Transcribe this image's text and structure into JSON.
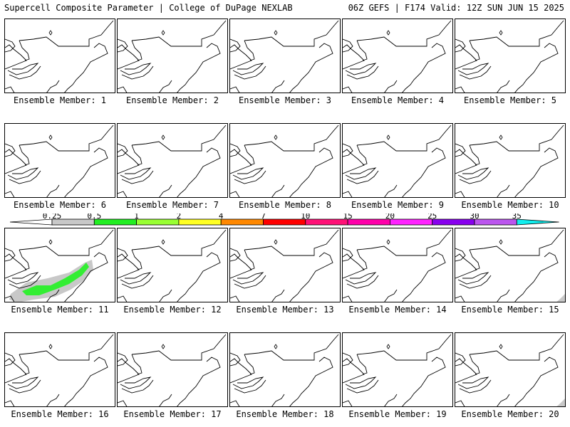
{
  "header": {
    "left": "Supercell Composite Parameter | College of DuPage NEXLAB",
    "right": "06Z GEFS | F174 Valid: 12Z SUN JUN 15 2025"
  },
  "members": [
    {
      "label": "Ensemble Member: 1"
    },
    {
      "label": "Ensemble Member: 2"
    },
    {
      "label": "Ensemble Member: 3"
    },
    {
      "label": "Ensemble Member: 4"
    },
    {
      "label": "Ensemble Member: 5"
    },
    {
      "label": "Ensemble Member: 6"
    },
    {
      "label": "Ensemble Member: 7"
    },
    {
      "label": "Ensemble Member: 8"
    },
    {
      "label": "Ensemble Member: 9"
    },
    {
      "label": "Ensemble Member: 10"
    },
    {
      "label": "Ensemble Member: 11"
    },
    {
      "label": "Ensemble Member: 12"
    },
    {
      "label": "Ensemble Member: 13"
    },
    {
      "label": "Ensemble Member: 14"
    },
    {
      "label": "Ensemble Member: 15"
    },
    {
      "label": "Ensemble Member: 16"
    },
    {
      "label": "Ensemble Member: 17"
    },
    {
      "label": "Ensemble Member: 18"
    },
    {
      "label": "Ensemble Member: 19"
    },
    {
      "label": "Ensemble Member: 20"
    }
  ],
  "colorbar": {
    "ticks": [
      "0.25",
      "0.5",
      "1",
      "2",
      "4",
      "7",
      "10",
      "15",
      "20",
      "25",
      "30",
      "35"
    ],
    "colors": [
      "#c8c8c8",
      "#22ee22",
      "#99ff33",
      "#ffff22",
      "#ff8800",
      "#ff0000",
      "#ff1177",
      "#ff00aa",
      "#ff22ff",
      "#8800ee",
      "#bb55ee",
      "#11eeee"
    ]
  }
}
